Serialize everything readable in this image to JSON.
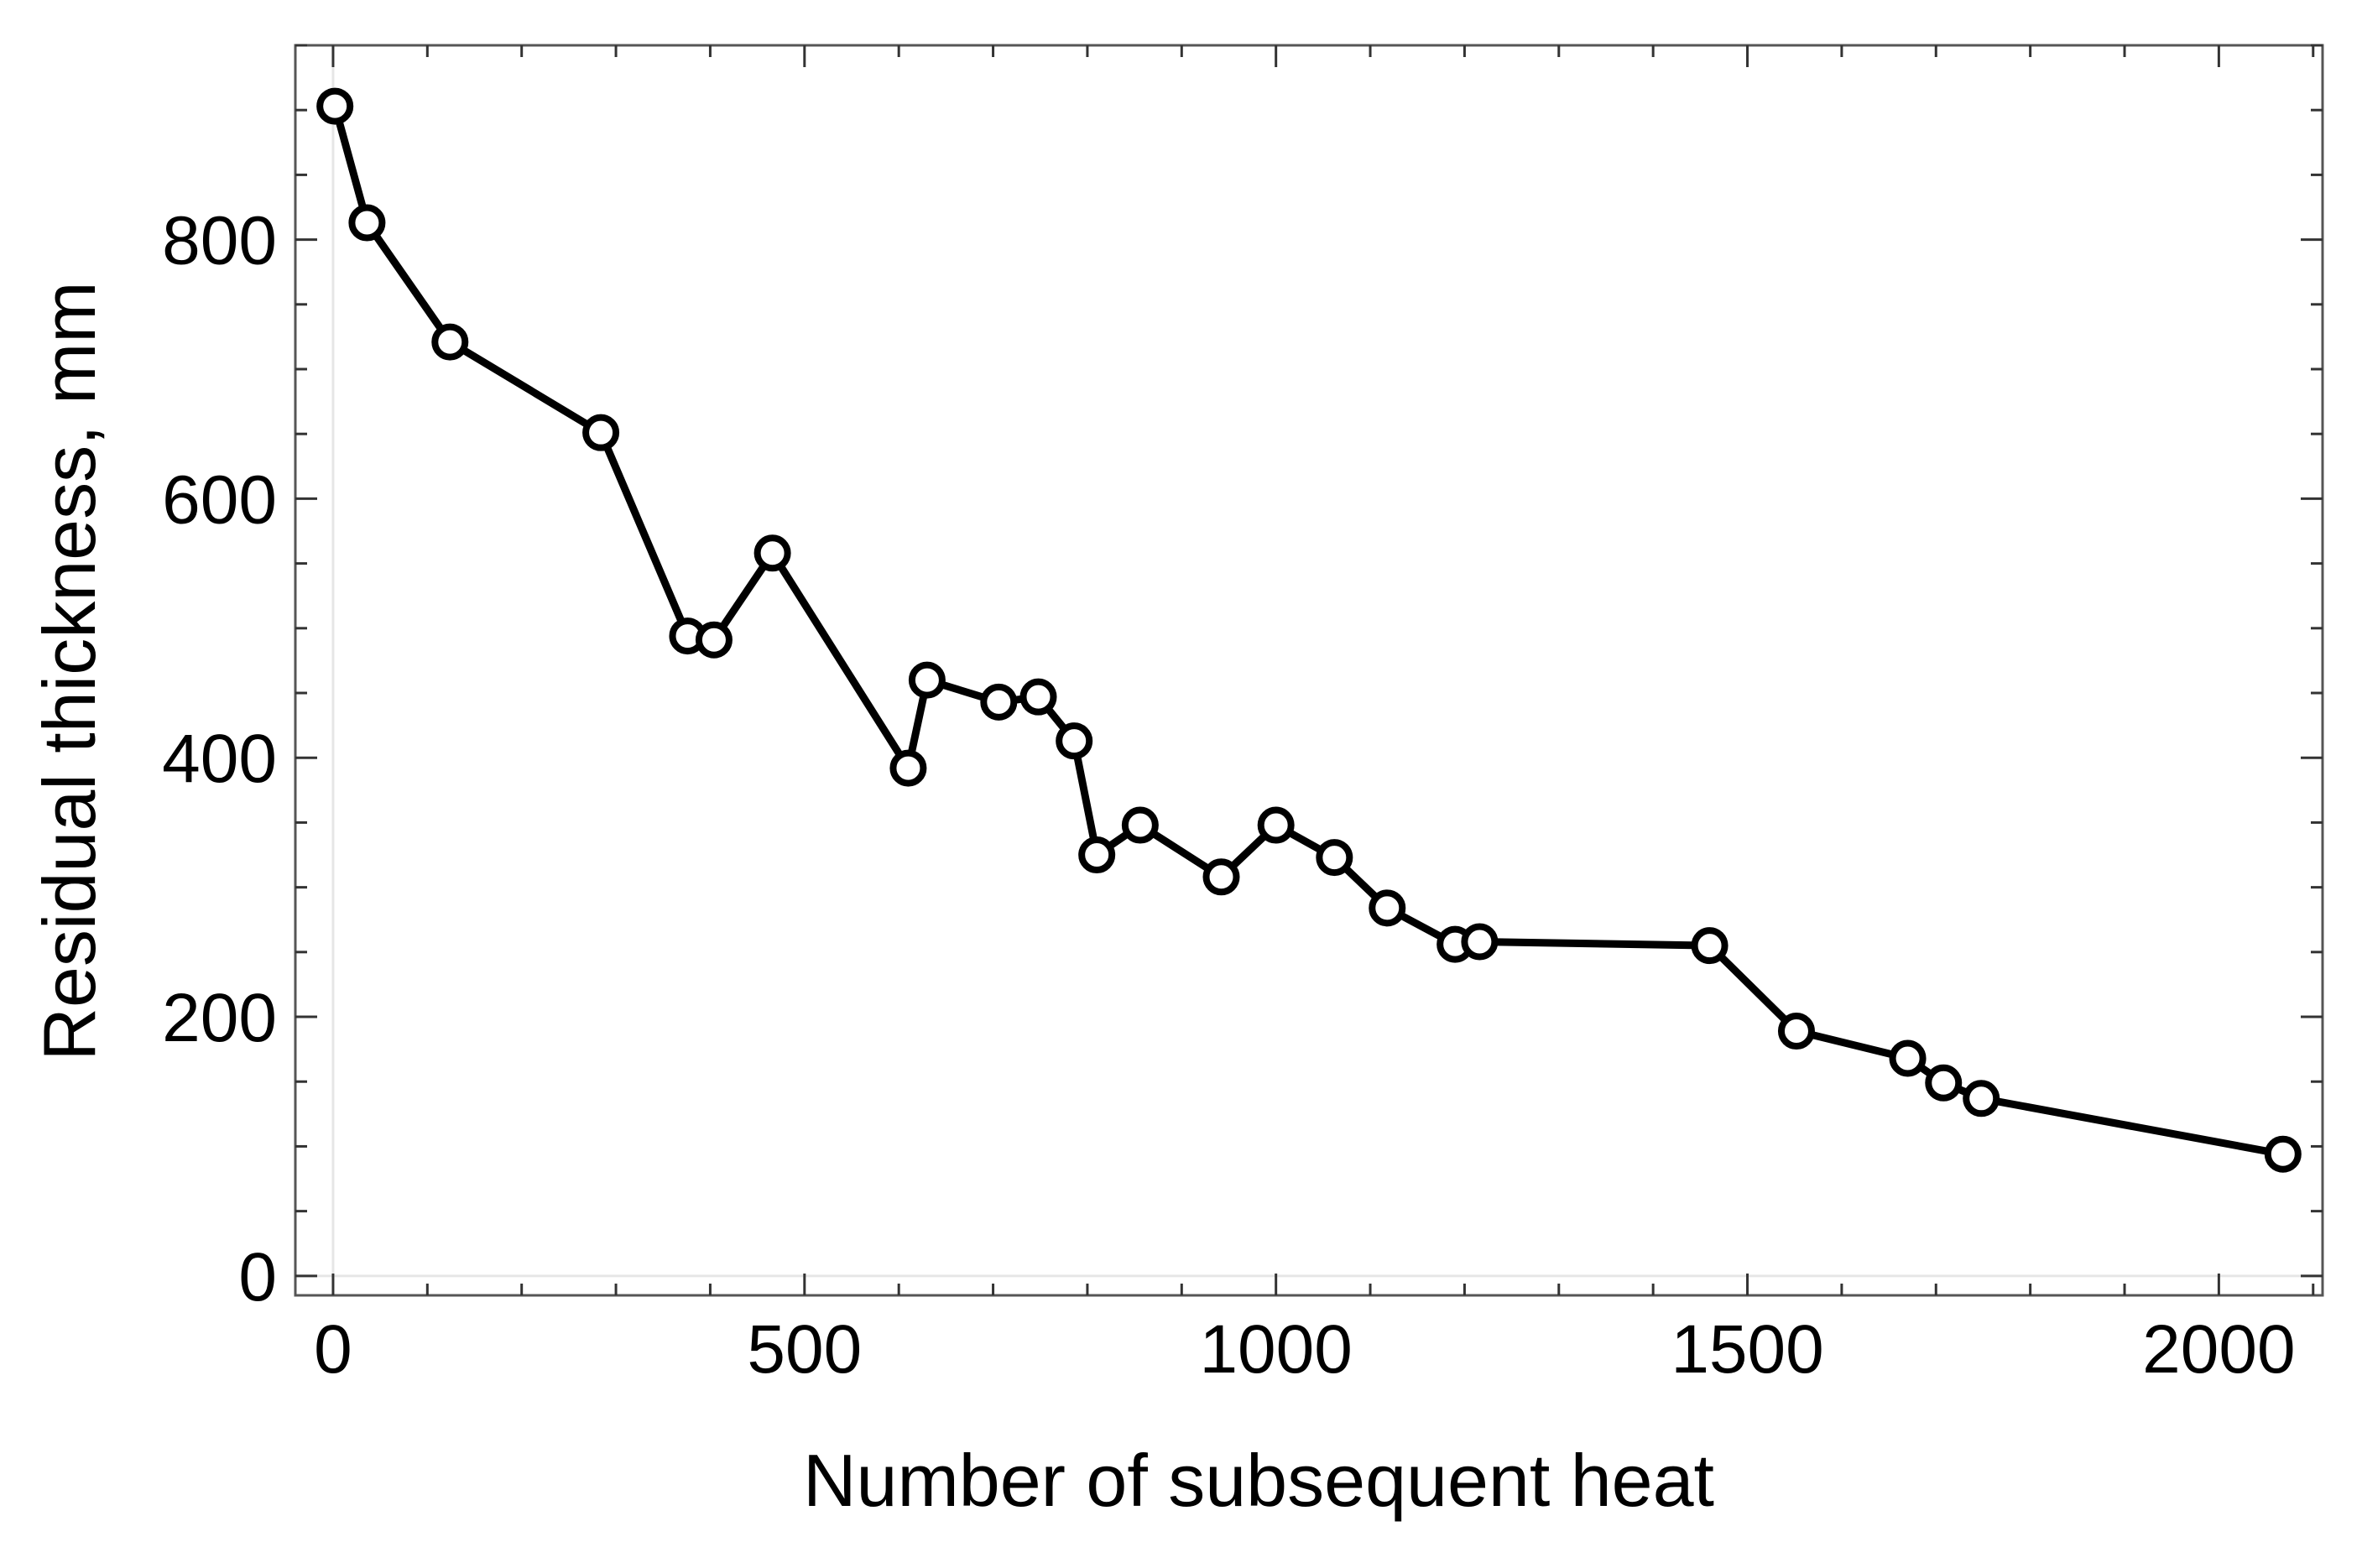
{
  "chart_data": {
    "type": "line",
    "title": "",
    "xlabel": "Number of subsequent heat",
    "ylabel": "Residual thickness, mm",
    "xlim": [
      -40,
      2110
    ],
    "ylim": [
      -15,
      950
    ],
    "x_ticks": [
      0,
      500,
      1000,
      1500,
      2000
    ],
    "x_tick_labels": [
      "0",
      "500",
      "1000",
      "1500",
      "2000"
    ],
    "y_ticks": [
      0,
      200,
      400,
      600,
      800
    ],
    "y_tick_labels": [
      "0",
      "200",
      "400",
      "600",
      "800"
    ],
    "x_minor_step": 100,
    "y_minor_step": 50,
    "grid": false,
    "legend": "none",
    "colors": {
      "line": "#000000",
      "marker_fill": "#ffffff",
      "marker_edge": "#000000",
      "frame": "#555555",
      "zero_line": "#e6e6e6"
    },
    "series": [
      {
        "name": "Residual thickness",
        "x": [
          2,
          36,
          124,
          284,
          376,
          404,
          466,
          610,
          630,
          706,
          748,
          786,
          810,
          856,
          942,
          1000,
          1062,
          1118,
          1190,
          1216,
          1460,
          1552,
          1670,
          1708,
          1748,
          2068
        ],
        "y": [
          903,
          813,
          721,
          651,
          494,
          491,
          558,
          392,
          460,
          443,
          447,
          413,
          325,
          348,
          308,
          348,
          323,
          284,
          256,
          258,
          255,
          189,
          168,
          149,
          137,
          94
        ]
      }
    ]
  }
}
